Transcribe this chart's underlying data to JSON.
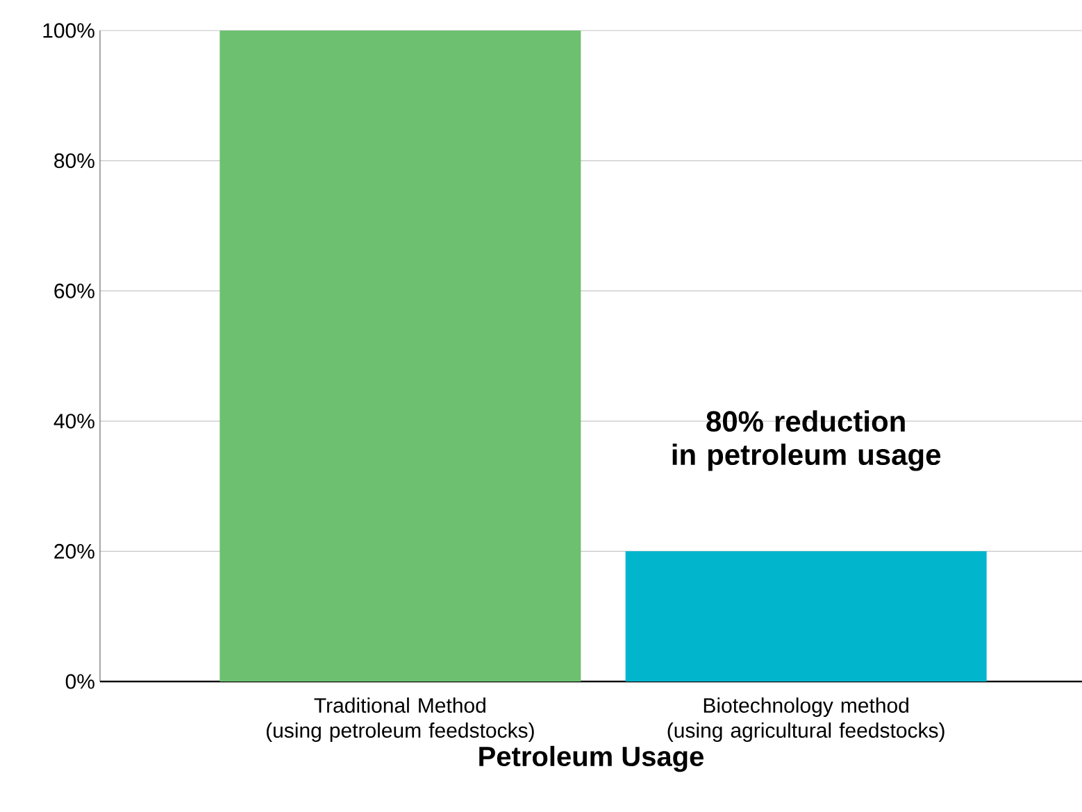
{
  "chart_data": {
    "type": "bar",
    "categories": [
      "Traditional Method\n(using petroleum feedstocks)",
      "Biotechnology method\n(using agricultural feedstocks)"
    ],
    "values": [
      100,
      20
    ],
    "colors": [
      "#6cc070",
      "#00b5cc"
    ],
    "xlabel": "Petroleum Usage",
    "ylim": [
      0,
      100
    ],
    "yticks": [
      {
        "value": 0,
        "label": "0%"
      },
      {
        "value": 20,
        "label": "20%"
      },
      {
        "value": 40,
        "label": "40%"
      },
      {
        "value": 60,
        "label": "60%"
      },
      {
        "value": 80,
        "label": "80%"
      },
      {
        "value": 100,
        "label": "100%"
      }
    ],
    "grid": "y",
    "annotations": [
      "80% reduction\nin petroleum usage"
    ]
  }
}
